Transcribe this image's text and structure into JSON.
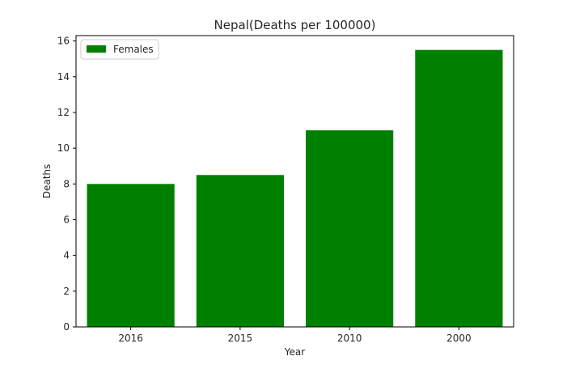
{
  "chart_data": {
    "type": "bar",
    "title": "Nepal(Deaths per 100000)",
    "xlabel": "Year",
    "ylabel": "Deaths",
    "categories": [
      "2016",
      "2015",
      "2010",
      "2000"
    ],
    "series": [
      {
        "name": "Females",
        "values": [
          8.0,
          8.5,
          11.0,
          15.5
        ],
        "color": "#008000"
      }
    ],
    "ylim": [
      0,
      16.3
    ],
    "yticks": [
      "0",
      "2",
      "4",
      "6",
      "8",
      "10",
      "12",
      "14",
      "16"
    ],
    "grid": false,
    "legend_position": "upper-left"
  }
}
